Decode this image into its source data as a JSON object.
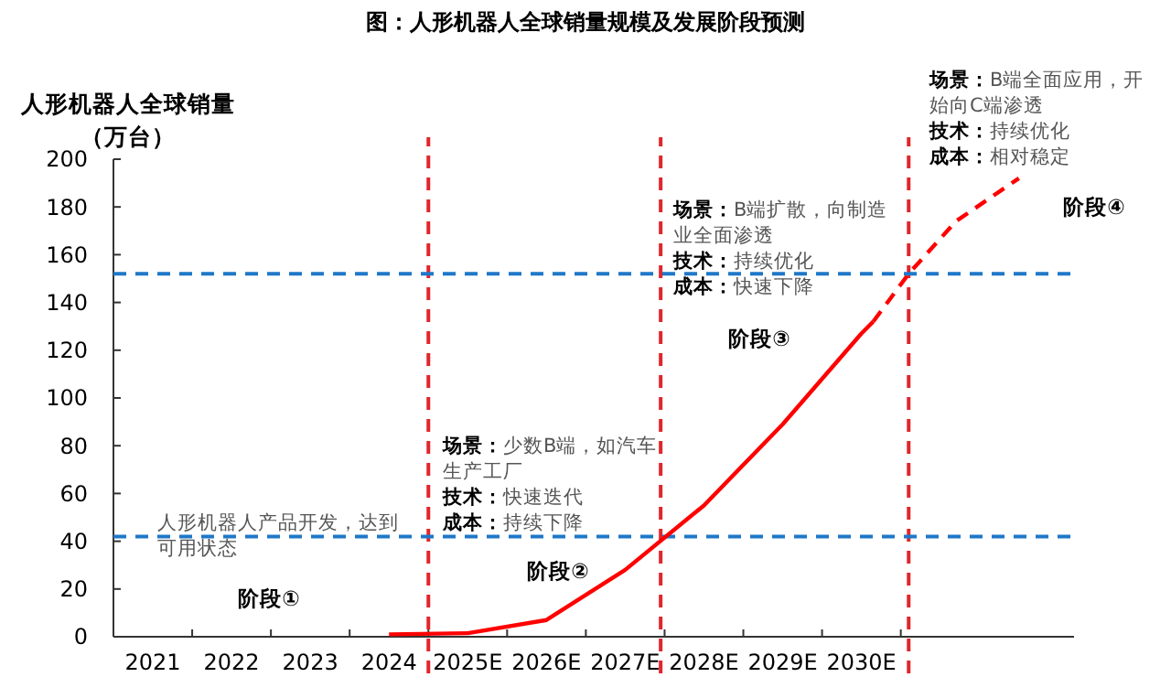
{
  "chart_data": {
    "type": "line",
    "title": "图：人形机器人全球销量规模及发展阶段预测",
    "ylabel": "人形机器人全球销量（万台）",
    "xlim": [
      2020.5,
      2032.7
    ],
    "xticks": [
      {
        "value": 2021,
        "label": "2021"
      },
      {
        "value": 2022,
        "label": "2022"
      },
      {
        "value": 2023,
        "label": "2023"
      },
      {
        "value": 2024,
        "label": "2024"
      },
      {
        "value": 2025,
        "label": "2025E"
      },
      {
        "value": 2026,
        "label": "2026E"
      },
      {
        "value": 2027,
        "label": "2027E"
      },
      {
        "value": 2028,
        "label": "2028E"
      },
      {
        "value": 2029,
        "label": "2029E"
      },
      {
        "value": 2030,
        "label": "2030E"
      },
      {
        "value": 2020.5,
        "label": null
      },
      {
        "value": 2021.5,
        "label": null
      },
      {
        "value": 2022.5,
        "label": null
      },
      {
        "value": 2023.5,
        "label": null
      },
      {
        "value": 2024.5,
        "label": null
      },
      {
        "value": 2025.5,
        "label": null
      },
      {
        "value": 2026.5,
        "label": null
      },
      {
        "value": 2027.5,
        "label": null
      },
      {
        "value": 2028.5,
        "label": null
      },
      {
        "value": 2029.5,
        "label": null
      },
      {
        "value": 2030.5,
        "label": null
      }
    ],
    "ylim": [
      0,
      200
    ],
    "yticks": [
      0,
      20,
      40,
      60,
      80,
      100,
      120,
      140,
      160,
      180,
      200
    ],
    "grid": false,
    "series": [
      {
        "color": "#ff0000",
        "line_style": "solid",
        "x": [
          2024,
          2025,
          2026,
          2027,
          2028,
          2029,
          2030,
          2030.15
        ],
        "values": [
          1,
          1.5,
          7,
          28,
          55,
          89,
          127,
          132
        ]
      },
      {
        "color": "#ff0000",
        "line_style": "dashed",
        "x": [
          2030.15,
          2030.6,
          2031.2,
          2032.0
        ],
        "values": [
          132,
          152,
          174,
          192
        ]
      }
    ],
    "ref_lines": [
      {
        "axis": "x",
        "value": 2024.5,
        "color": "#e0262b",
        "line_style": "dashed"
      },
      {
        "axis": "x",
        "value": 2027.45,
        "color": "#e0262b",
        "line_style": "dashed"
      },
      {
        "axis": "x",
        "value": 2030.6,
        "color": "#e0262b",
        "line_style": "dashed"
      },
      {
        "axis": "y",
        "value": 42,
        "color": "#1f78c8",
        "line_style": "dashed",
        "label": "人形机器人产品开发，达到可用状态"
      },
      {
        "axis": "y",
        "value": 152,
        "color": "#1f78c8",
        "line_style": "dashed"
      }
    ],
    "annotations": [
      "阶段①",
      "阶段②",
      "阶段③",
      "阶段④",
      "场景：少数B端，如汽车生产工厂",
      "技术：快速迭代",
      "成本：持续下降",
      "场景：B端扩散，向制造业全面渗透",
      "技术：持续优化",
      "成本：快速下降",
      "场景：B端全面应用，开始向C端渗透",
      "技术：持续优化",
      "成本：相对稳定"
    ]
  }
}
